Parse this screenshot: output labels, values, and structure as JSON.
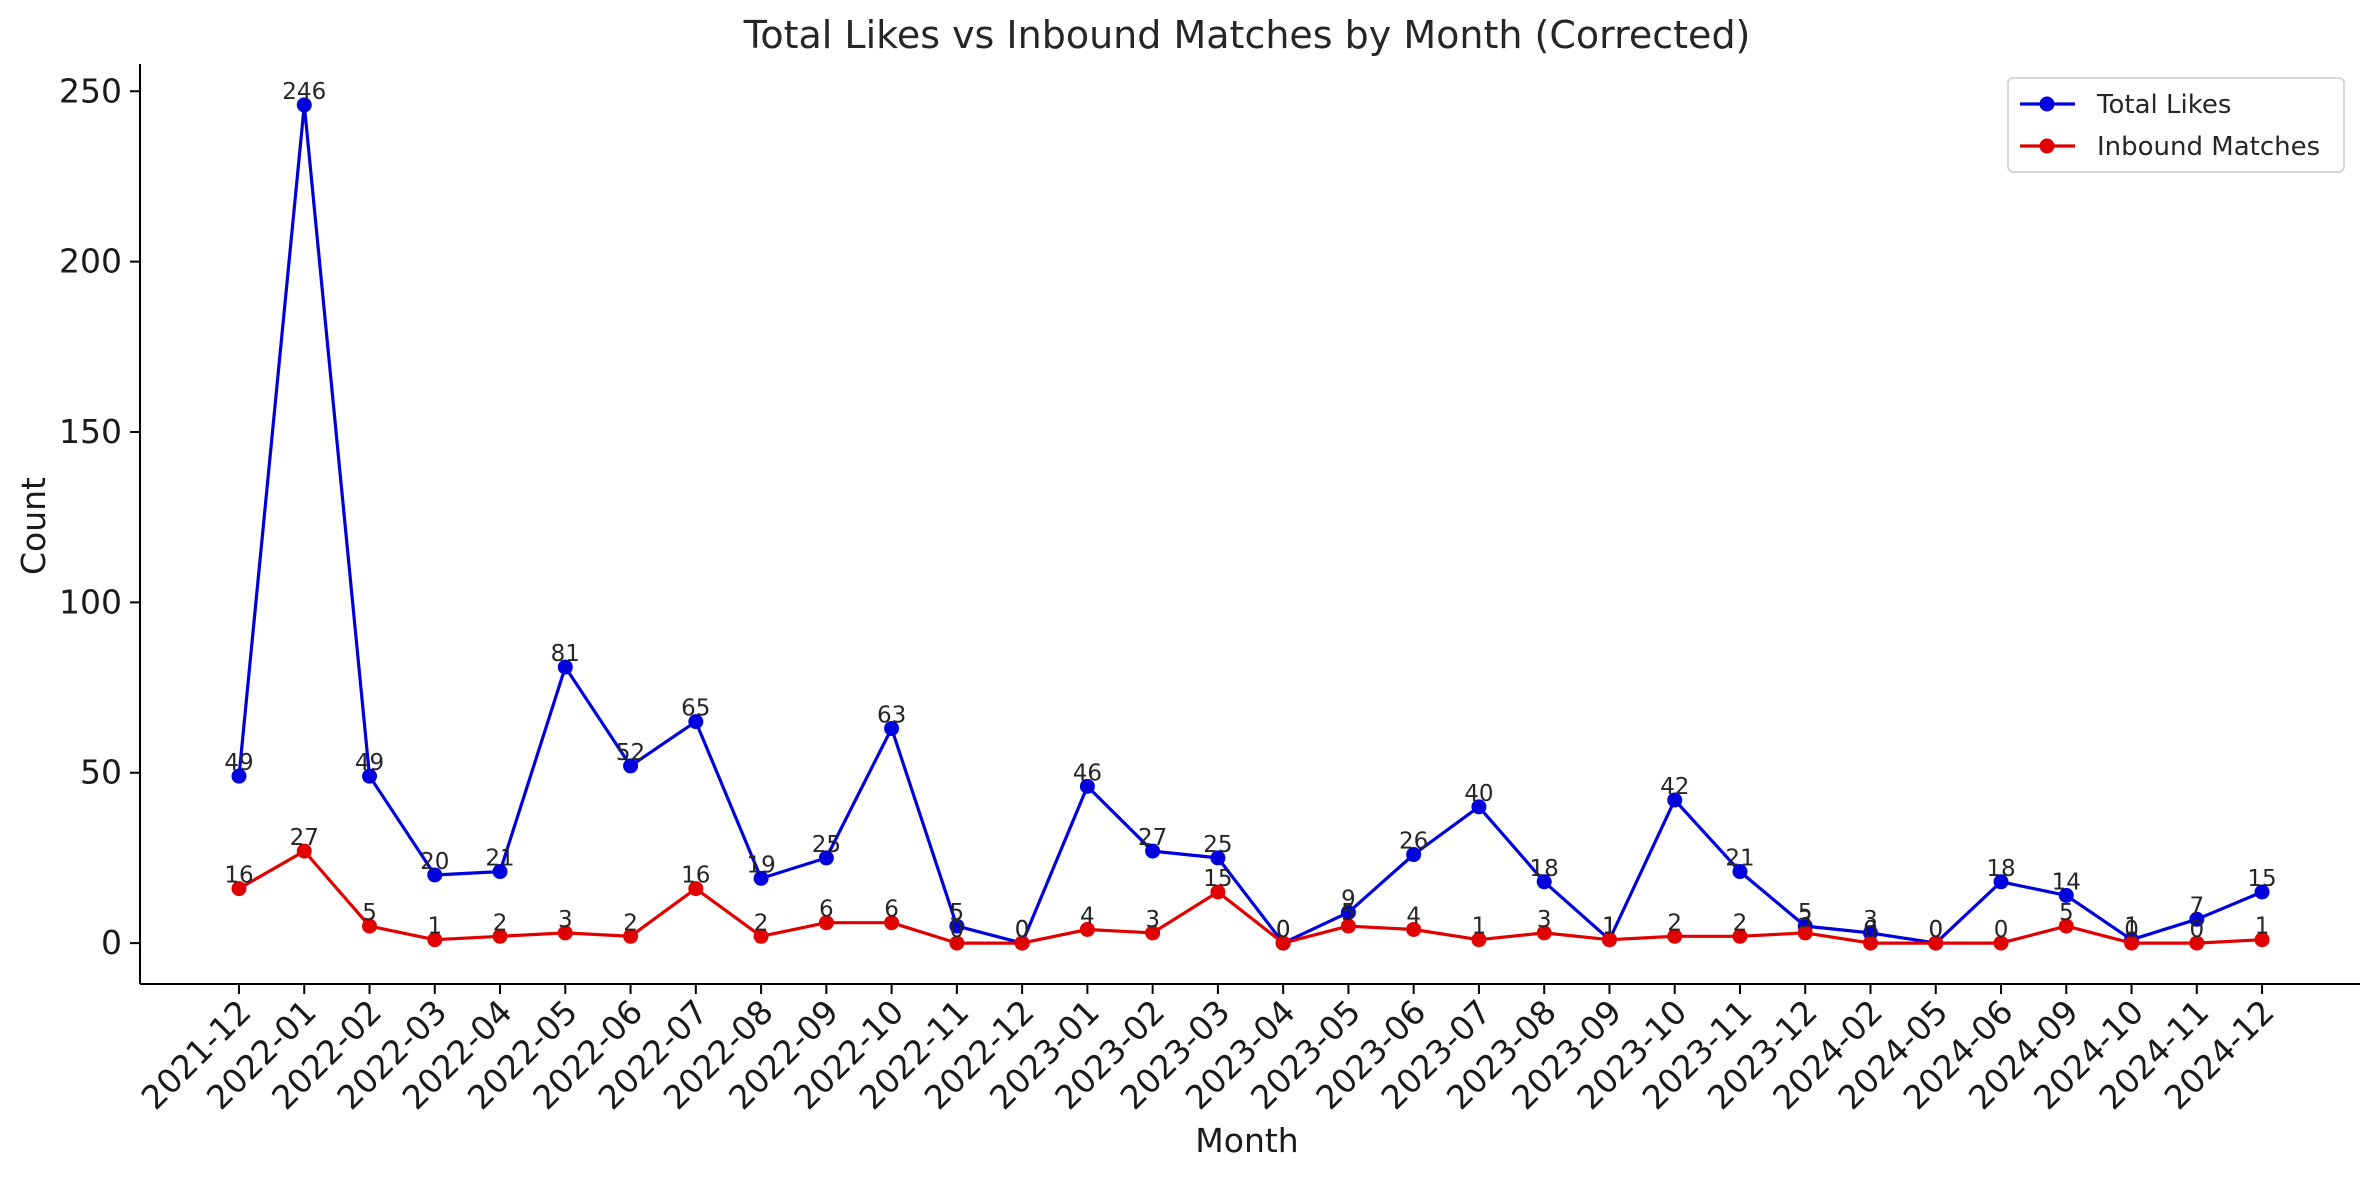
{
  "chart_data": {
    "type": "line",
    "title": "Total Likes vs Inbound Matches by Month (Corrected)",
    "xlabel": "Month",
    "ylabel": "Count",
    "ylim": [
      -12,
      258
    ],
    "yticks": [
      0,
      50,
      100,
      150,
      200,
      250
    ],
    "grid": false,
    "legend_position": "top-right",
    "categories": [
      "2021-12",
      "2022-01",
      "2022-02",
      "2022-03",
      "2022-04",
      "2022-05",
      "2022-06",
      "2022-07",
      "2022-08",
      "2022-09",
      "2022-10",
      "2022-11",
      "2022-12",
      "2023-01",
      "2023-02",
      "2023-03",
      "2023-04",
      "2023-05",
      "2023-06",
      "2023-07",
      "2023-08",
      "2023-09",
      "2023-10",
      "2023-11",
      "2023-12",
      "2024-02",
      "2024-05",
      "2024-06",
      "2024-09",
      "2024-10",
      "2024-11",
      "2024-12"
    ],
    "series": [
      {
        "name": "Total Likes",
        "color": "#0000dd",
        "values": [
          49,
          246,
          49,
          20,
          21,
          81,
          52,
          65,
          19,
          25,
          63,
          5,
          0,
          46,
          27,
          25,
          0,
          9,
          26,
          40,
          18,
          1,
          42,
          21,
          5,
          3,
          0,
          18,
          14,
          1,
          7,
          15
        ]
      },
      {
        "name": "Inbound Matches",
        "color": "#e00000",
        "values": [
          16,
          27,
          5,
          1,
          2,
          3,
          2,
          16,
          2,
          6,
          6,
          0,
          0,
          4,
          3,
          15,
          0,
          5,
          4,
          1,
          3,
          1,
          2,
          2,
          3,
          0,
          0,
          0,
          5,
          0,
          0,
          1
        ]
      }
    ]
  }
}
